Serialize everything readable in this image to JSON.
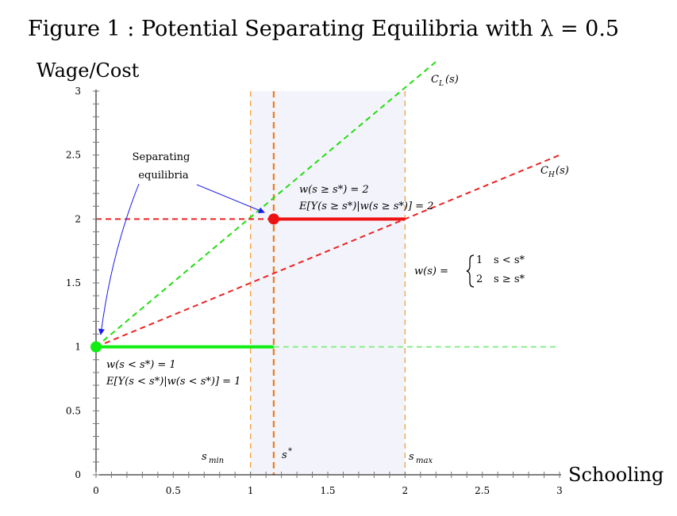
{
  "chart_data": {
    "type": "line",
    "title": "Figure 1 : Potential Separating Equilibria with λ = 0.5",
    "xlabel": "Schooling",
    "ylabel": "Wage/Cost",
    "xlim": [
      0,
      3
    ],
    "ylim": [
      0,
      3
    ],
    "x_ticks": [
      {
        "value": 0,
        "label": "0"
      },
      {
        "value": 0.5,
        "label": "0.5"
      },
      {
        "value": 1,
        "label": "1"
      },
      {
        "value": 1.5,
        "label": "1.5"
      },
      {
        "value": 2,
        "label": "2"
      },
      {
        "value": 2.5,
        "label": "2.5"
      },
      {
        "value": 3,
        "label": "3"
      }
    ],
    "y_ticks": [
      {
        "value": 0,
        "label": "0"
      },
      {
        "value": 0.5,
        "label": "0.5"
      },
      {
        "value": 1,
        "label": "1"
      },
      {
        "value": 1.5,
        "label": "1.5"
      },
      {
        "value": 2,
        "label": "2"
      },
      {
        "value": 2.5,
        "label": "2.5"
      },
      {
        "value": 3,
        "label": "3"
      }
    ],
    "minor_tick_step": 0.1,
    "shaded_region": {
      "from": 1,
      "to": 2,
      "color": "#f3f4fb"
    },
    "series": [
      {
        "name": "C_L(s)",
        "label": "C_L(s)",
        "style": "dashed",
        "color": "#22dd11",
        "points": [
          [
            0,
            1
          ],
          [
            2.2,
            3.23
          ]
        ]
      },
      {
        "name": "C_H(s)",
        "label": "C_H(s)",
        "style": "dashed",
        "color": "#ee2222",
        "points": [
          [
            0,
            1
          ],
          [
            3,
            2.5
          ]
        ]
      },
      {
        "name": "w = 1 (s < s*)",
        "style": "solid",
        "color": "#11ee11",
        "points": [
          [
            0,
            1
          ],
          [
            1.15,
            1
          ]
        ]
      },
      {
        "name": "w = 1 extension",
        "style": "dashed",
        "color": "#88ee88",
        "points": [
          [
            1.15,
            1
          ],
          [
            3,
            1
          ]
        ]
      },
      {
        "name": "w = 2 (s ≥ s*)",
        "style": "solid",
        "color": "#ee1111",
        "points": [
          [
            1.15,
            2
          ],
          [
            2,
            2
          ]
        ]
      },
      {
        "name": "w = 2 guide",
        "style": "dashed",
        "color": "#ee2222",
        "points": [
          [
            0,
            2
          ],
          [
            1.15,
            2
          ]
        ]
      }
    ],
    "vertical_lines": [
      {
        "name": "s_min",
        "x": 1,
        "style": "dashed",
        "color": "#f4a64a",
        "label": "s_min"
      },
      {
        "name": "s*",
        "x": 1.15,
        "style": "dashed",
        "color": "#f07a1a",
        "label": "s*"
      },
      {
        "name": "s_max",
        "x": 2,
        "style": "dashed",
        "color": "#f4a64a",
        "label": "s_max"
      }
    ],
    "points": [
      {
        "name": "low-type-equilibrium",
        "x": 0,
        "y": 1,
        "color": "#11ee11"
      },
      {
        "name": "high-type-equilibrium",
        "x": 1.15,
        "y": 2,
        "color": "#ee1111"
      }
    ],
    "annotations": {
      "separating_line1": "Separating",
      "separating_line2": "equilibria",
      "high_wage": "w(s ≥ s*) = 2",
      "high_expect": "E[Y(s ≥ s*)|w(s ≥ s*)] = 2",
      "low_wage": "w(s < s*) = 1",
      "low_expect": "E[Y(s < s*)|w(s < s*)] = 1",
      "wage_rule_lhs": "w(s) =",
      "wage_rule_row1_value": "1",
      "wage_rule_row1_cond": "s < s*",
      "wage_rule_row2_value": "2",
      "wage_rule_row2_cond": "s ≥ s*"
    }
  }
}
